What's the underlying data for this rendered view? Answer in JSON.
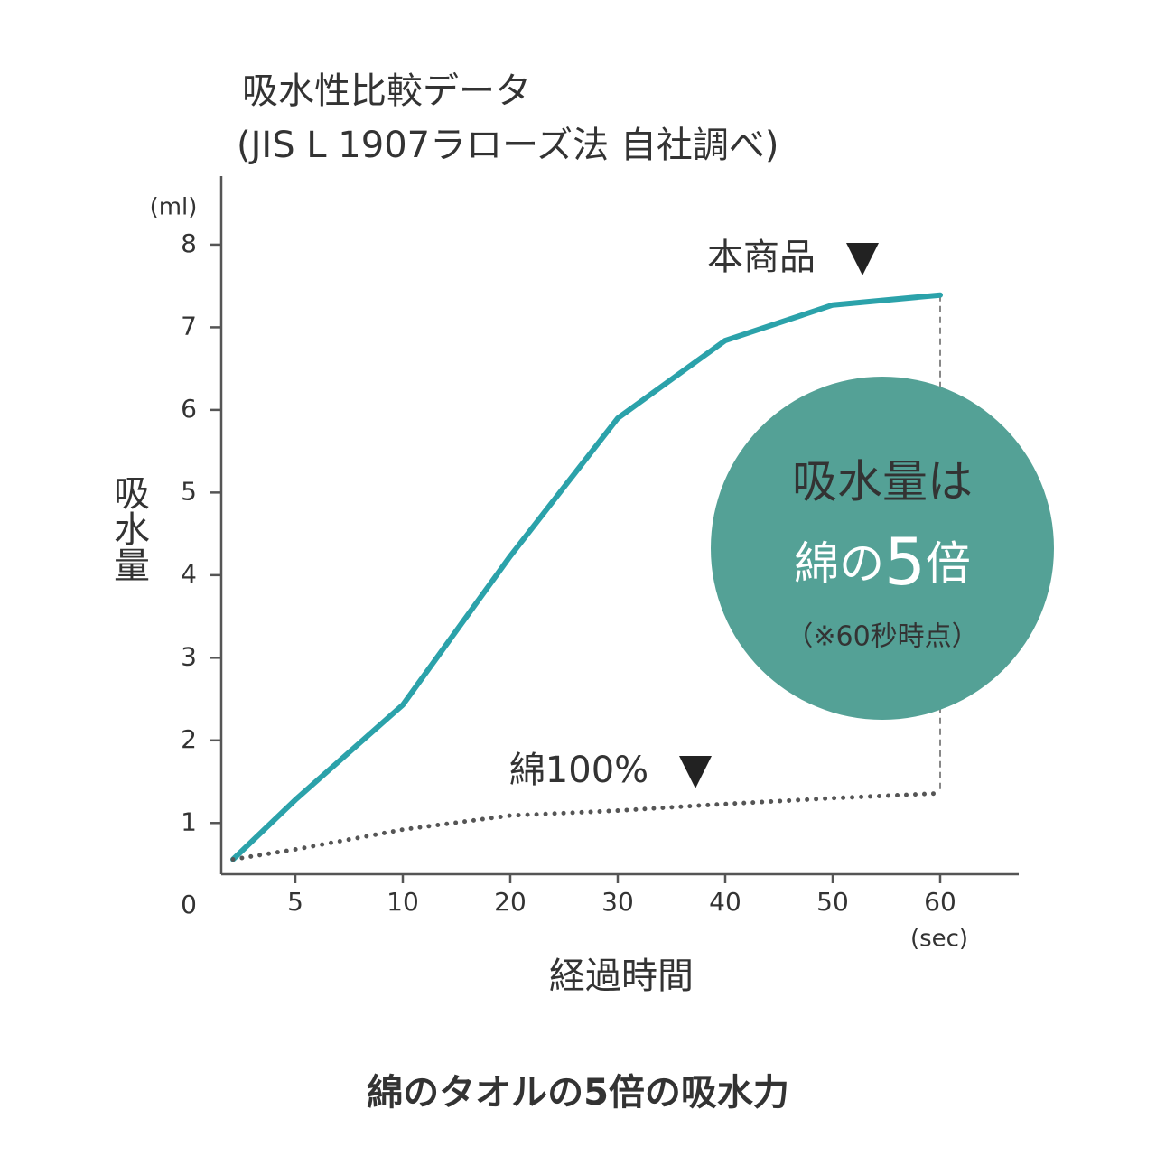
{
  "chart_data": {
    "type": "line",
    "title": "吸水性比較データ",
    "subtitle": "(JIS L 1907ラローズ法 自社調べ)",
    "y_label": "吸水量",
    "y_unit": "(ml)",
    "x_label": "経過時間",
    "x_unit": "(sec)",
    "categories": [
      null,
      "5",
      "10",
      "20",
      "30",
      "40",
      "50",
      "60"
    ],
    "series": [
      {
        "name": "本商品",
        "color": "#2ba2aa",
        "style": "solid",
        "values": [
          0.56,
          1.28,
          2.43,
          4.23,
          5.9,
          6.84,
          7.27,
          7.39
        ]
      },
      {
        "name": "綿100%",
        "color": "#555555",
        "style": "dotted",
        "values": [
          0.56,
          0.68,
          0.92,
          1.09,
          1.15,
          1.23,
          1.3,
          1.36
        ]
      }
    ],
    "ylim": [
      0.38,
      8.83
    ],
    "yticks": [
      0,
      1,
      2,
      3,
      4,
      5,
      6,
      7,
      8
    ],
    "callout": {
      "line1": "吸水量は",
      "line2a": "綿の",
      "line2b": "5",
      "line2c": "倍",
      "note": "（※60秒時点）",
      "color": "#54a196"
    },
    "caption": "綿のタオルの5倍の吸水力"
  }
}
